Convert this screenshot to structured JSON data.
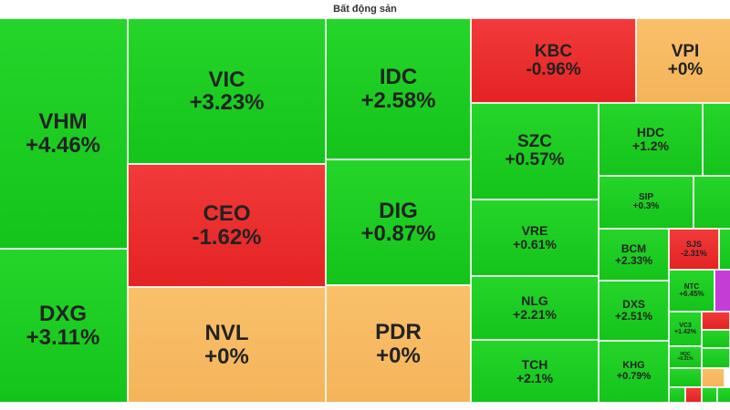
{
  "header": {
    "title": "Bất động sản"
  },
  "colors": {
    "up": "#1bcc21",
    "down": "#e92d2d",
    "flat": "#f7b962",
    "ceiling": "#c43ed6"
  },
  "tiles": [
    {
      "symbol": "VHM",
      "change": "+4.46%",
      "state": "up"
    },
    {
      "symbol": "DXG",
      "change": "+3.11%",
      "state": "up"
    },
    {
      "symbol": "VIC",
      "change": "+3.23%",
      "state": "up"
    },
    {
      "symbol": "CEO",
      "change": "-1.62%",
      "state": "down"
    },
    {
      "symbol": "NVL",
      "change": "+0%",
      "state": "flat"
    },
    {
      "symbol": "IDC",
      "change": "+2.58%",
      "state": "up"
    },
    {
      "symbol": "DIG",
      "change": "+0.87%",
      "state": "up"
    },
    {
      "symbol": "PDR",
      "change": "+0%",
      "state": "flat"
    },
    {
      "symbol": "KBC",
      "change": "-0.96%",
      "state": "down"
    },
    {
      "symbol": "VPI",
      "change": "+0%",
      "state": "flat"
    },
    {
      "symbol": "SZC",
      "change": "+0.57%",
      "state": "up"
    },
    {
      "symbol": "VRE",
      "change": "+0.61%",
      "state": "up"
    },
    {
      "symbol": "NLG",
      "change": "+2.21%",
      "state": "up"
    },
    {
      "symbol": "TCH",
      "change": "+2.1%",
      "state": "up"
    },
    {
      "symbol": "HDC",
      "change": "+1.2%",
      "state": "up"
    },
    {
      "symbol": "SIP",
      "change": "+0.3%",
      "state": "up"
    },
    {
      "symbol": "BCM",
      "change": "+2.33%",
      "state": "up"
    },
    {
      "symbol": "DXS",
      "change": "+2.51%",
      "state": "up"
    },
    {
      "symbol": "KHG",
      "change": "+0.79%",
      "state": "up"
    },
    {
      "symbol": "SJS",
      "change": "-2.31%",
      "state": "down"
    },
    {
      "symbol": "NTC",
      "change": "+6.45%",
      "state": "up"
    },
    {
      "symbol": "VC3",
      "change": "+1.42%",
      "state": "up"
    },
    {
      "symbol": "HQC",
      "change": "+0.31%",
      "state": "up"
    },
    {
      "symbol": "",
      "change": "",
      "state": "up"
    },
    {
      "symbol": "",
      "change": "",
      "state": "up"
    },
    {
      "symbol": "",
      "change": "",
      "state": "up"
    },
    {
      "symbol": "",
      "change": "",
      "state": "ceil"
    },
    {
      "symbol": "",
      "change": "",
      "state": "down"
    },
    {
      "symbol": "",
      "change": "",
      "state": "up"
    },
    {
      "symbol": "",
      "change": "",
      "state": "up"
    },
    {
      "symbol": "",
      "change": "",
      "state": "flat"
    },
    {
      "symbol": "",
      "change": "",
      "state": "up"
    },
    {
      "symbol": "",
      "change": "",
      "state": "down"
    },
    {
      "symbol": "",
      "change": "",
      "state": "up"
    },
    {
      "symbol": "",
      "change": "",
      "state": "up"
    },
    {
      "symbol": "",
      "change": "",
      "state": "up"
    }
  ]
}
